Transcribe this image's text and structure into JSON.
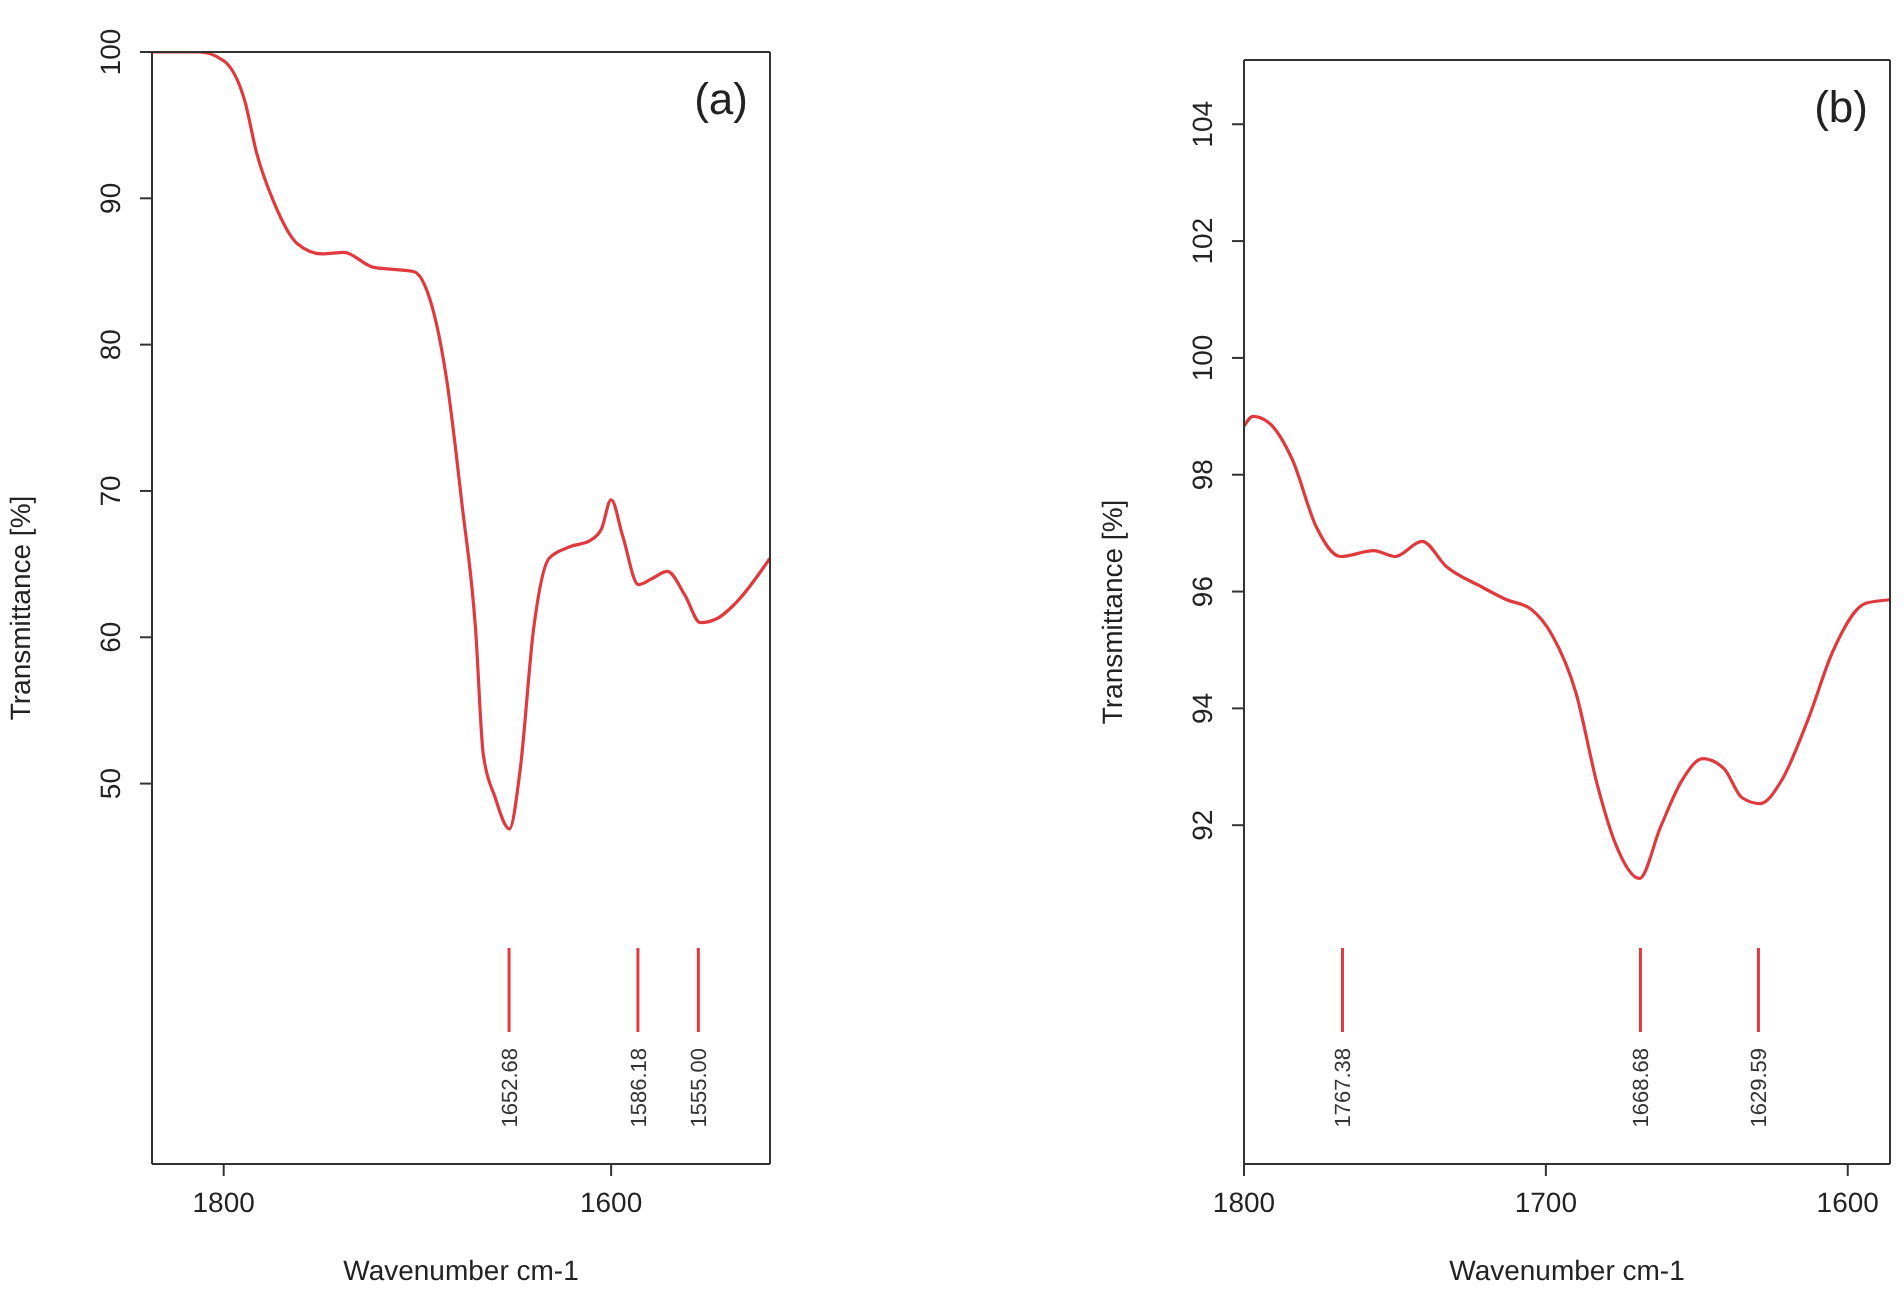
{
  "chart_data": [
    {
      "type": "line",
      "title": "(a)",
      "xlabel": "Wavenumber cm-1",
      "ylabel": "Transmittance [%]",
      "xlim": [
        1837,
        1518
      ],
      "ylim": [
        24,
        100
      ],
      "xticks": [
        1800,
        1600
      ],
      "yticks": [
        50,
        60,
        70,
        80,
        90,
        100
      ],
      "marker": "none",
      "x": [
        1837,
        1813,
        1800,
        1789,
        1783,
        1774,
        1762,
        1749,
        1738,
        1723,
        1702,
        1696,
        1685,
        1677,
        1670,
        1666,
        1660,
        1652.5,
        1647,
        1640,
        1632,
        1621,
        1611,
        1605,
        1600,
        1594,
        1586,
        1579,
        1571,
        1562,
        1554,
        1545,
        1536,
        1518
      ],
      "series": [
        {
          "color": "#e0393e",
          "values": [
            100,
            100,
            99.4,
            96.6,
            93.1,
            89.7,
            86.9,
            86.2,
            86.3,
            85.3,
            85.0,
            84.0,
            77.7,
            69.1,
            60.6,
            52.0,
            49.1,
            46.9,
            50.9,
            60.6,
            65.4,
            66.2,
            66.6,
            67.4,
            69.4,
            66.9,
            63.6,
            64.0,
            64.5,
            62.9,
            61.0,
            61.3,
            62.3,
            65.4
          ]
        }
      ],
      "ref_lines": [
        {
          "axis": "x",
          "value": 1652.68,
          "label": "1652.68",
          "color": "#e0393e"
        },
        {
          "axis": "x",
          "value": 1586.18,
          "label": "1586.18",
          "color": "#e0393e"
        },
        {
          "axis": "x",
          "value": 1555.0,
          "label": "1555.00",
          "color": "#e0393e"
        }
      ]
    },
    {
      "type": "line",
      "title": "(b)",
      "xlabel": "Wavenumber cm-1",
      "ylabel": "Transmittance [%]",
      "xlim": [
        1800,
        1586
      ],
      "ylim": [
        86.2,
        105.1
      ],
      "xticks": [
        1800,
        1700,
        1600
      ],
      "yticks": [
        92,
        94,
        96,
        98,
        100,
        102,
        104
      ],
      "marker": "none",
      "x": [
        1800,
        1797,
        1792,
        1784,
        1776,
        1768,
        1757,
        1750,
        1741,
        1733,
        1722,
        1713,
        1705,
        1698,
        1690,
        1683,
        1677,
        1669,
        1662,
        1655,
        1648,
        1641,
        1635,
        1629,
        1622,
        1613,
        1605,
        1594,
        1586
      ],
      "series": [
        {
          "color": "#e0393e",
          "values": [
            98.83,
            99.0,
            98.9,
            98.26,
            97.1,
            96.6,
            96.7,
            96.6,
            96.86,
            96.43,
            96.1,
            95.86,
            95.7,
            95.26,
            94.26,
            92.7,
            91.69,
            91.09,
            91.97,
            92.76,
            93.14,
            92.97,
            92.47,
            92.37,
            92.76,
            93.83,
            94.97,
            95.8,
            95.86
          ]
        }
      ],
      "ref_lines": [
        {
          "axis": "x",
          "value": 1767.38,
          "label": "1767.38",
          "color": "#e0393e"
        },
        {
          "axis": "x",
          "value": 1668.68,
          "label": "1668.68",
          "color": "#e0393e"
        },
        {
          "axis": "x",
          "value": 1629.59,
          "label": "1629.59",
          "color": "#e0393e"
        }
      ]
    }
  ]
}
